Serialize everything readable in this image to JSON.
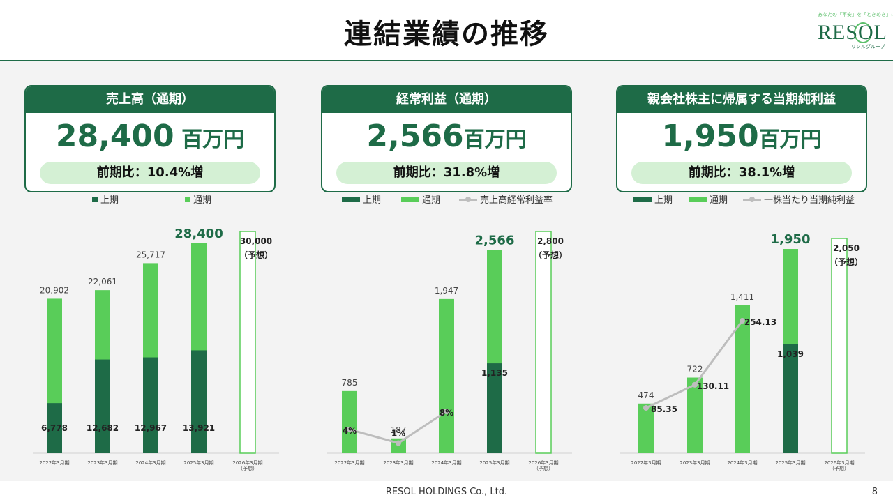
{
  "title": "連結業績の推移",
  "logo": {
    "tagline": "あなたの「不安」を「ときめき」に。",
    "wordmark": "RESOL",
    "subtitle": "リソルグループ"
  },
  "footer": {
    "company": "RESOL HOLDINGS Co., Ltd.",
    "page": "8"
  },
  "colors": {
    "dark_green": "#1e6b47",
    "light_green": "#59cd59",
    "pill": "#d4f0d4",
    "line": "#bdbdbd"
  },
  "cards": [
    {
      "header": "売上高（通期）",
      "value": "28,400",
      "unit": " 百万円",
      "yoy": "前期比：10.4%増"
    },
    {
      "header": "経常利益（通期）",
      "value": "2,566",
      "unit": "百万円",
      "yoy": "前期比：31.8%増"
    },
    {
      "header": "親会社株主に帰属する当期純利益",
      "value": "1,950",
      "unit": "百万円",
      "yoy": "前期比：38.1%増"
    }
  ],
  "chart_data": [
    {
      "type": "bar",
      "legend": [
        "上期",
        "通期"
      ],
      "categories": [
        "2022年3月期",
        "2023年3月期",
        "2024年3月期",
        "2025年3月期",
        "2026年3月期\n（予想）"
      ],
      "series": [
        {
          "name": "上期",
          "values": [
            6778,
            12682,
            12967,
            13921,
            null
          ]
        },
        {
          "name": "通期",
          "values": [
            20902,
            22061,
            25717,
            28400,
            30000
          ]
        }
      ],
      "first_half_labels": [
        "6,778",
        "12,682",
        "12,967",
        "13,921",
        ""
      ],
      "full_year_labels": [
        "20,902",
        "22,061",
        "25,717",
        "28,400",
        "30,000\n（予想）"
      ],
      "forecast_index": 4,
      "highlight_index": 3,
      "ylim": [
        0,
        30000
      ]
    },
    {
      "type": "bar",
      "legend": [
        "上期",
        "通期",
        "売上高経常利益率"
      ],
      "categories": [
        "2022年3月期",
        "2023年3月期",
        "2024年3月期",
        "2025年3月期",
        "2026年3月期\n（予想）"
      ],
      "series": [
        {
          "name": "上期",
          "values": [
            null,
            null,
            null,
            1135,
            null
          ]
        },
        {
          "name": "通期",
          "values": [
            785,
            187,
            1947,
            2566,
            2800
          ]
        },
        {
          "name": "売上高経常利益率",
          "values": [
            4,
            1,
            8,
            null,
            null
          ]
        }
      ],
      "first_half_labels": [
        "",
        "",
        "",
        "1,135",
        ""
      ],
      "full_year_labels": [
        "785",
        "187",
        "1,947",
        "2,566",
        "2,800\n（予想）"
      ],
      "line_labels": [
        "4%",
        "1%",
        "8%",
        "",
        ""
      ],
      "forecast_index": 4,
      "highlight_index": 3,
      "ylim": [
        0,
        2800
      ]
    },
    {
      "type": "bar",
      "legend": [
        "上期",
        "通期",
        "一株当たり当期純利益"
      ],
      "categories": [
        "2022年3月期",
        "2023年3月期",
        "2024年3月期",
        "2025年3月期",
        "2026年3月期\n（予想）"
      ],
      "series": [
        {
          "name": "上期",
          "values": [
            null,
            null,
            null,
            1039,
            null
          ]
        },
        {
          "name": "通期",
          "values": [
            474,
            722,
            1411,
            1950,
            2050
          ]
        },
        {
          "name": "一株当たり当期純利益",
          "values": [
            85.35,
            130.11,
            254.13,
            null,
            null
          ]
        }
      ],
      "first_half_labels": [
        "",
        "",
        "",
        "1,039",
        ""
      ],
      "full_year_labels": [
        "474",
        "722",
        "1,411",
        "1,950",
        "2,050\n（予想）"
      ],
      "line_labels": [
        "85.35",
        "130.11",
        "254.13",
        "",
        ""
      ],
      "forecast_index": 4,
      "highlight_index": 3,
      "ylim": [
        0,
        2050
      ]
    }
  ]
}
